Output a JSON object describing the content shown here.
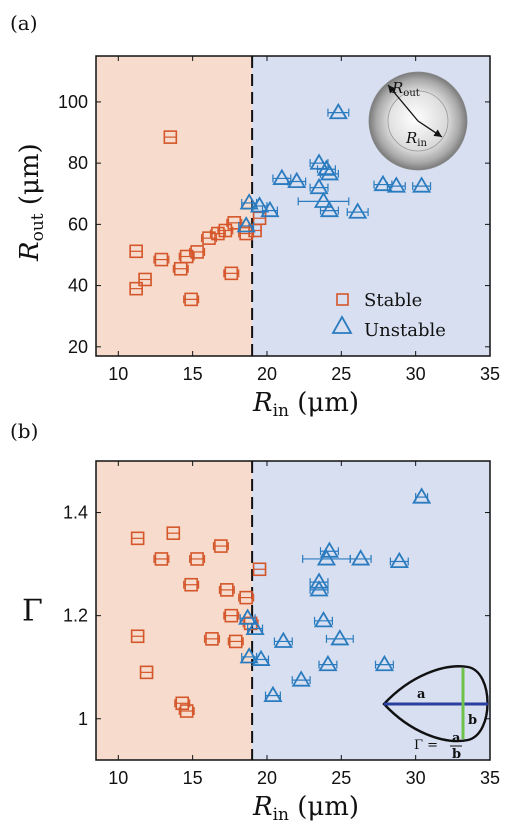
{
  "panel_tags": [
    "(a)",
    "(b)"
  ],
  "colors": {
    "stable": "#d4562a",
    "unstable": "#2b7bbf",
    "stable_bg": "#f7dccd",
    "unstable_bg": "#d7dff1"
  },
  "threshold_x": 19,
  "inset_a": {
    "outer_label": "R",
    "outer_sub": "out",
    "inner_label": "R",
    "inner_sub": "in"
  },
  "inset_b": {
    "a_label": "a",
    "b_label": "b",
    "gamma_label": "Γ ="
  },
  "chart_data": [
    {
      "type": "scatter",
      "title": "(a)",
      "xlabel": "R_in (μm)",
      "ylabel": "R_out (μm)",
      "xlabel_main": "R",
      "xlabel_sub": "in",
      "xlabel_unit": "(μm)",
      "ylabel_main": "R",
      "ylabel_sub": "out",
      "ylabel_unit": "(μm)",
      "xlim": [
        8.5,
        35
      ],
      "ylim": [
        17,
        115
      ],
      "xticks": [
        10,
        15,
        20,
        25,
        30,
        35
      ],
      "yticks": [
        20,
        40,
        60,
        80,
        100
      ],
      "legend": [
        "Stable",
        "Unstable"
      ],
      "legend_position": "bottom-right",
      "series": [
        {
          "name": "Stable",
          "marker": "square",
          "points": [
            {
              "x": 13.5,
              "y": 88.5,
              "xerr": 0.4
            },
            {
              "x": 11.2,
              "y": 51.2,
              "xerr": 0.4
            },
            {
              "x": 12.9,
              "y": 48.5,
              "xerr": 0.5
            },
            {
              "x": 11.8,
              "y": 42,
              "xerr": 0.4
            },
            {
              "x": 11.2,
              "y": 39,
              "xerr": 0.4
            },
            {
              "x": 14.2,
              "y": 45.5,
              "xerr": 0.5
            },
            {
              "x": 14.6,
              "y": 49.5,
              "xerr": 0.5
            },
            {
              "x": 15.3,
              "y": 51,
              "xerr": 0.5
            },
            {
              "x": 14.9,
              "y": 35.5,
              "xerr": 0.5
            },
            {
              "x": 16.1,
              "y": 55.5,
              "xerr": 0.5
            },
            {
              "x": 16.7,
              "y": 57,
              "xerr": 0.5
            },
            {
              "x": 17.2,
              "y": 58,
              "xerr": 0.5
            },
            {
              "x": 17.8,
              "y": 60.5,
              "xerr": 0.5
            },
            {
              "x": 17.6,
              "y": 44,
              "xerr": 0.5
            },
            {
              "x": 18.6,
              "y": 57,
              "xerr": 0.5
            },
            {
              "x": 19.2,
              "y": 58,
              "xerr": 0.4
            },
            {
              "x": 19.5,
              "y": 62,
              "xerr": 0.4
            }
          ]
        },
        {
          "name": "Unstable",
          "marker": "triangle",
          "points": [
            {
              "x": 24.8,
              "y": 96.5,
              "xerr": 0.7
            },
            {
              "x": 18.8,
              "y": 67,
              "xerr": 0.5
            },
            {
              "x": 18.6,
              "y": 59.5,
              "xerr": 0.5
            },
            {
              "x": 19.5,
              "y": 66,
              "xerr": 0.5
            },
            {
              "x": 20.2,
              "y": 64.5,
              "xerr": 0.5
            },
            {
              "x": 21.0,
              "y": 75,
              "xerr": 0.6
            },
            {
              "x": 22.0,
              "y": 74,
              "xerr": 0.6
            },
            {
              "x": 23.5,
              "y": 80,
              "xerr": 0.6
            },
            {
              "x": 24.0,
              "y": 78,
              "xerr": 0.6
            },
            {
              "x": 24.2,
              "y": 76.5,
              "xerr": 0.6
            },
            {
              "x": 23.5,
              "y": 72,
              "xerr": 0.6
            },
            {
              "x": 23.8,
              "y": 67.5,
              "xerr": 1.7
            },
            {
              "x": 24.2,
              "y": 64.5,
              "xerr": 0.6
            },
            {
              "x": 26.1,
              "y": 64,
              "xerr": 0.7
            },
            {
              "x": 27.8,
              "y": 73,
              "xerr": 0.6
            },
            {
              "x": 28.7,
              "y": 72.5,
              "xerr": 0.6
            },
            {
              "x": 30.4,
              "y": 72.5,
              "xerr": 0.6
            }
          ]
        }
      ]
    },
    {
      "type": "scatter",
      "title": "(b)",
      "xlabel": "R_in (μm)",
      "ylabel": "Γ",
      "xlabel_main": "R",
      "xlabel_sub": "in",
      "xlabel_unit": "(μm)",
      "ylabel_main": "Γ",
      "xlim": [
        8.5,
        35
      ],
      "ylim": [
        0.92,
        1.5
      ],
      "xticks": [
        10,
        15,
        20,
        25,
        30,
        35
      ],
      "yticks": [
        1,
        1.2,
        1.4
      ],
      "series": [
        {
          "name": "Stable",
          "marker": "square",
          "points": [
            {
              "x": 11.3,
              "y": 1.35,
              "xerr": 0.4
            },
            {
              "x": 13.7,
              "y": 1.36,
              "xerr": 0.4
            },
            {
              "x": 12.9,
              "y": 1.31,
              "xerr": 0.5
            },
            {
              "x": 15.3,
              "y": 1.31,
              "xerr": 0.5
            },
            {
              "x": 16.9,
              "y": 1.335,
              "xerr": 0.5
            },
            {
              "x": 19.5,
              "y": 1.29,
              "xerr": 0.4
            },
            {
              "x": 14.9,
              "y": 1.26,
              "xerr": 0.5
            },
            {
              "x": 17.3,
              "y": 1.25,
              "xerr": 0.5
            },
            {
              "x": 18.6,
              "y": 1.235,
              "xerr": 0.5
            },
            {
              "x": 17.6,
              "y": 1.2,
              "xerr": 0.5
            },
            {
              "x": 18.9,
              "y": 1.185,
              "xerr": 0.5
            },
            {
              "x": 11.3,
              "y": 1.16,
              "xerr": 0.4
            },
            {
              "x": 16.3,
              "y": 1.155,
              "xerr": 0.5
            },
            {
              "x": 17.9,
              "y": 1.15,
              "xerr": 0.5
            },
            {
              "x": 11.9,
              "y": 1.09,
              "xerr": 0.4
            },
            {
              "x": 14.3,
              "y": 1.03,
              "xerr": 0.5
            },
            {
              "x": 14.6,
              "y": 1.015,
              "xerr": 0.5
            }
          ]
        },
        {
          "name": "Unstable",
          "marker": "triangle",
          "points": [
            {
              "x": 30.4,
              "y": 1.43,
              "xerr": 0.4
            },
            {
              "x": 24.2,
              "y": 1.325,
              "xerr": 0.6
            },
            {
              "x": 24.0,
              "y": 1.31,
              "xerr": 1.6
            },
            {
              "x": 26.3,
              "y": 1.31,
              "xerr": 0.7
            },
            {
              "x": 28.9,
              "y": 1.305,
              "xerr": 0.6
            },
            {
              "x": 23.5,
              "y": 1.265,
              "xerr": 0.6
            },
            {
              "x": 23.5,
              "y": 1.25,
              "xerr": 0.6
            },
            {
              "x": 18.7,
              "y": 1.195,
              "xerr": 0.5
            },
            {
              "x": 19.2,
              "y": 1.175,
              "xerr": 0.5
            },
            {
              "x": 23.8,
              "y": 1.19,
              "xerr": 0.6
            },
            {
              "x": 21.1,
              "y": 1.15,
              "xerr": 0.6
            },
            {
              "x": 24.9,
              "y": 1.155,
              "xerr": 0.9
            },
            {
              "x": 18.8,
              "y": 1.12,
              "xerr": 0.5
            },
            {
              "x": 19.6,
              "y": 1.115,
              "xerr": 0.5
            },
            {
              "x": 24.1,
              "y": 1.105,
              "xerr": 0.6
            },
            {
              "x": 27.9,
              "y": 1.105,
              "xerr": 0.6
            },
            {
              "x": 22.3,
              "y": 1.075,
              "xerr": 0.6
            },
            {
              "x": 20.4,
              "y": 1.045,
              "xerr": 0.5
            }
          ]
        }
      ]
    }
  ]
}
